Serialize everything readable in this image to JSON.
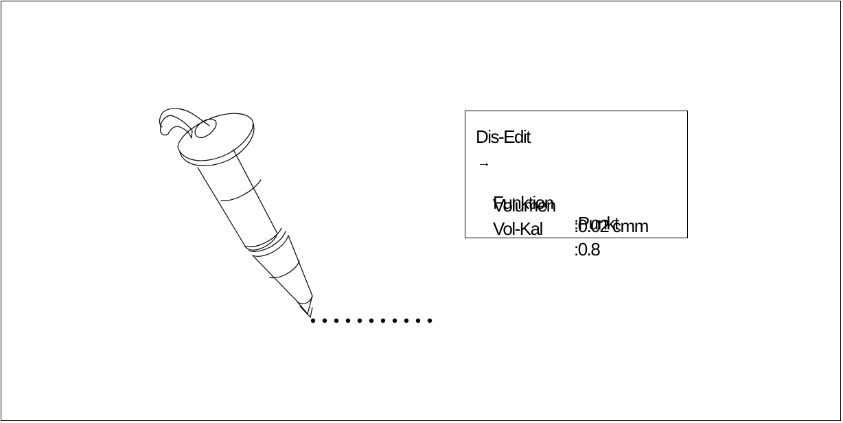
{
  "display": {
    "title": "Dis-Edit",
    "cursor": "→",
    "rows": [
      {
        "label": "Funktion",
        "value": ":Punkt"
      },
      {
        "label": "Volumen",
        "value": ":0.02 cmm"
      },
      {
        "label": "Vol-Kal",
        "value": ":0.8"
      }
    ]
  },
  "illustration": {
    "object": "dispenser-pen-icon",
    "dispensed_dots": 11
  }
}
